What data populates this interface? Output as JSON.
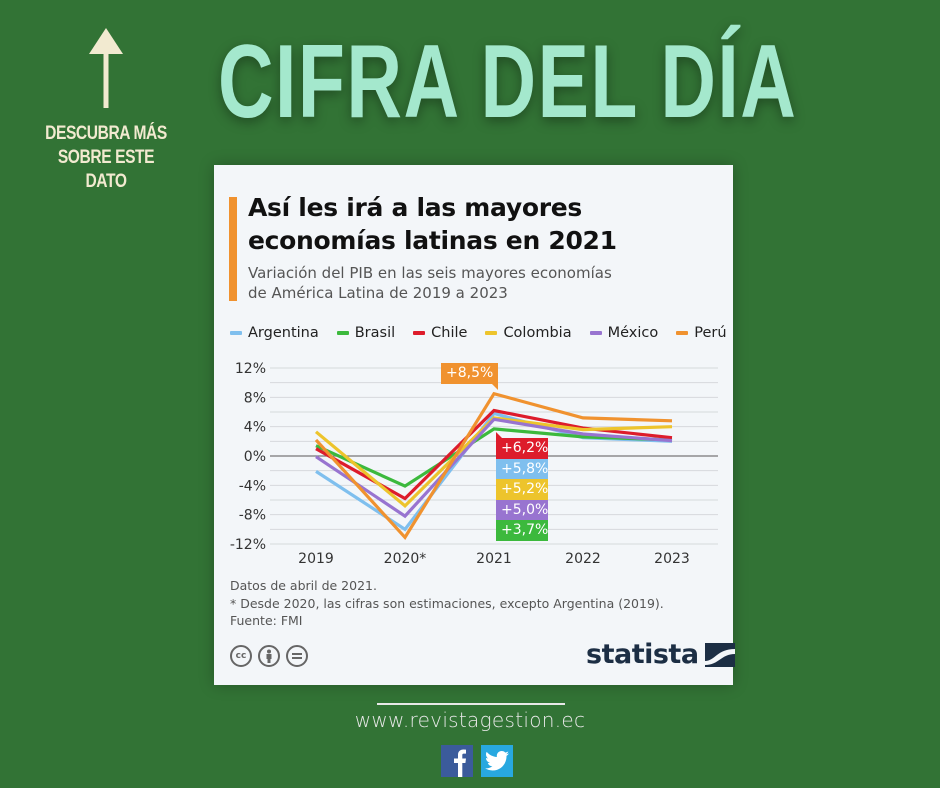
{
  "header": {
    "headline": "CIFRA DEL DÍA",
    "promo_line1": "DESCUBRA MÁS",
    "promo_line2": "SOBRE ESTE DATO"
  },
  "card": {
    "title_line1": "Así les irá a las mayores",
    "title_line2": "economías latinas en 2021",
    "subtitle_line1": "Variación del PIB en las seis mayores economías",
    "subtitle_line2": "de América Latina de 2019 a 2023",
    "notes": [
      "Datos de abril de 2021.",
      "* Desde 2020, las cifras son estimaciones, excepto Argentina (2019).",
      "Fuente: FMI"
    ],
    "cc_icons": [
      "cc",
      "by",
      "nd"
    ],
    "brand": "statista"
  },
  "colors": {
    "background": "#327335",
    "headline": "#a4e8cd",
    "accent": "#f0922f"
  },
  "chart_data": {
    "type": "line",
    "title": "Así les irá a las mayores economías latinas en 2021",
    "subtitle": "Variación del PIB en las seis mayores economías de América Latina de 2019 a 2023",
    "xlabel": "",
    "ylabel": "",
    "categories": [
      "2019",
      "2020*",
      "2021",
      "2022",
      "2023"
    ],
    "yticks": [
      12,
      8,
      4,
      0,
      -4,
      -8,
      -12
    ],
    "ytick_labels": [
      "12%",
      "8%",
      "4%",
      "0%",
      "-4%",
      "-8%",
      "-12%"
    ],
    "ylim": [
      -12,
      12
    ],
    "grid": true,
    "legend_position": "top",
    "series": [
      {
        "name": "Argentina",
        "color": "#7fbfee",
        "values": [
          -2.1,
          -10.0,
          5.8,
          2.5,
          2.0
        ]
      },
      {
        "name": "Brasil",
        "color": "#3cb93d",
        "values": [
          1.4,
          -4.1,
          3.7,
          2.6,
          2.2
        ]
      },
      {
        "name": "Chile",
        "color": "#dd1c2b",
        "values": [
          1.0,
          -5.8,
          6.2,
          3.8,
          2.5
        ]
      },
      {
        "name": "Colombia",
        "color": "#edc42c",
        "values": [
          3.3,
          -6.8,
          5.2,
          3.6,
          4.0
        ]
      },
      {
        "name": "México",
        "color": "#9874d0",
        "values": [
          -0.1,
          -8.2,
          5.0,
          3.0,
          2.1
        ]
      },
      {
        "name": "Perú",
        "color": "#f0922f",
        "values": [
          2.2,
          -11.1,
          8.5,
          5.2,
          4.8
        ]
      }
    ],
    "annotations": [
      {
        "text": "+8,5%",
        "series": "Perú",
        "category": "2021"
      },
      {
        "text": "+6,2%",
        "series": "Chile",
        "category": "2021"
      },
      {
        "text": "+5,8%",
        "series": "Argentina",
        "category": "2021"
      },
      {
        "text": "+5,2%",
        "series": "Colombia",
        "category": "2021"
      },
      {
        "text": "+5,0%",
        "series": "México",
        "category": "2021"
      },
      {
        "text": "+3,7%",
        "series": "Brasil",
        "category": "2021"
      }
    ]
  },
  "footer": {
    "url": "www.revistagestion.ec",
    "social": [
      "facebook",
      "twitter"
    ]
  }
}
